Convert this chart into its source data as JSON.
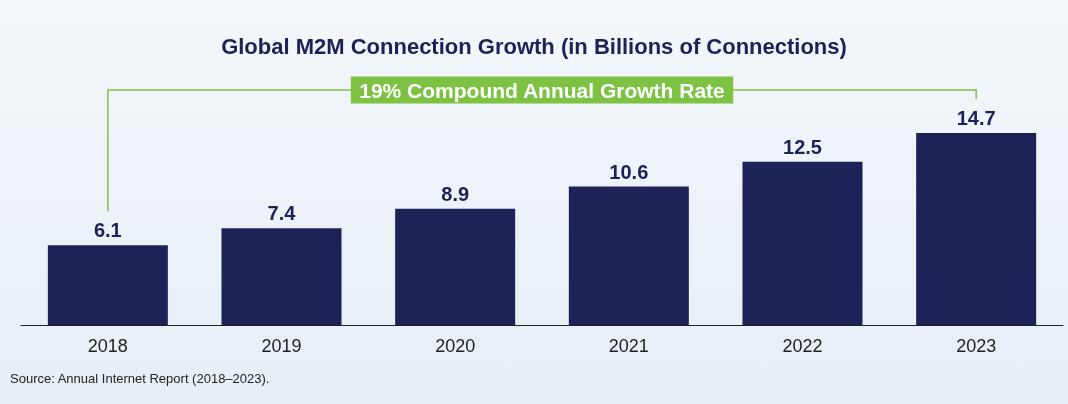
{
  "chart_data": {
    "type": "bar",
    "title": "Global M2M Connection Growth (in Billions of Connections)",
    "categories": [
      "2018",
      "2019",
      "2020",
      "2021",
      "2022",
      "2023"
    ],
    "values": [
      6.1,
      7.4,
      8.9,
      10.6,
      12.5,
      14.7
    ],
    "color": "#1c2157",
    "data_labels": true,
    "annotations": [
      "19% Compound Annual Growth Rate",
      "Source: Annual Internet Report (2018–2023)."
    ]
  }
}
